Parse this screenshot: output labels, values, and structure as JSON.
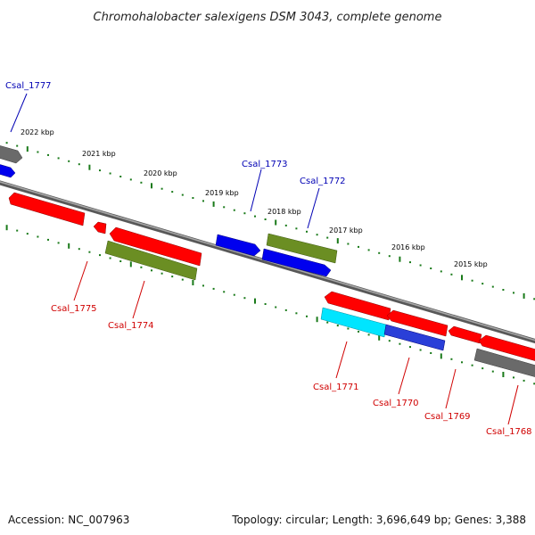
{
  "title": "Chromohalobacter salexigens DSM 3043, complete genome",
  "footer": {
    "accession": "Accession: NC_007963",
    "summary": "Topology: circular; Length: 3,696,649 bp; Genes: 3,388"
  },
  "ticks": [
    "2022 kbp",
    "2021 kbp",
    "2020 kbp",
    "2019 kbp",
    "2018 kbp",
    "2017 kbp",
    "2016 kbp",
    "2015 kbp"
  ],
  "genes": [
    {
      "id": "Csal_1777",
      "color": "#0000b4"
    },
    {
      "id": "Csal_1773",
      "color": "#0000b4"
    },
    {
      "id": "Csal_1772",
      "color": "#0000b4"
    },
    {
      "id": "Csal_1775",
      "color": "#d00000"
    },
    {
      "id": "Csal_1774",
      "color": "#d00000"
    },
    {
      "id": "Csal_1771",
      "color": "#d00000"
    },
    {
      "id": "Csal_1770",
      "color": "#d00000"
    },
    {
      "id": "Csal_1769",
      "color": "#d00000"
    },
    {
      "id": "Csal_1768",
      "color": "#d00000"
    }
  ],
  "colors": {
    "red": "#ff0000",
    "blue": "#0000ee",
    "olive": "#6b8e23",
    "cyan": "#00e5ff",
    "gray": "#707070",
    "tick": "#1a7a1a",
    "backbone": "#808080"
  }
}
